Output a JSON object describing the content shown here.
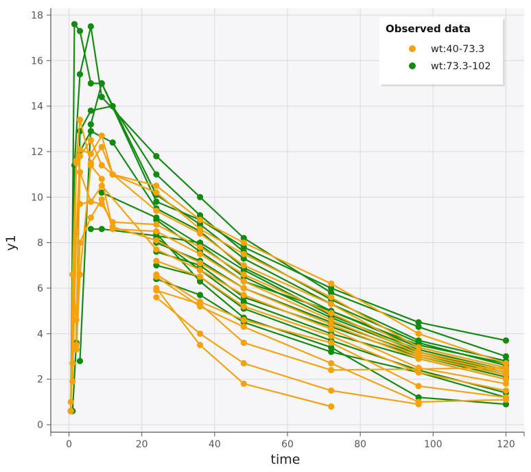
{
  "chart_data": {
    "type": "line",
    "title": "",
    "xlabel": "time",
    "ylabel": "y1",
    "xlim": [
      -5,
      125
    ],
    "ylim": [
      -0.3,
      18.3
    ],
    "xticks": [
      "0",
      "20",
      "40",
      "60",
      "80",
      "100",
      "120"
    ],
    "yticks": [
      "0",
      "2",
      "4",
      "6",
      "8",
      "10",
      "12",
      "14",
      "16",
      "18"
    ],
    "grid": true,
    "legend": {
      "title": "Observed data",
      "position": "top-right",
      "entries": [
        {
          "label": "wt:40-73.3",
          "color": "#f5a20f"
        },
        {
          "label": "wt:73.3-102",
          "color": "#138a10"
        }
      ]
    },
    "series": [
      {
        "group": "wt:73.3-102",
        "color": "#138a10",
        "x": [
          0.5,
          1.5,
          3,
          6,
          9,
          24,
          36,
          48,
          72,
          96,
          120
        ],
        "y": [
          0.6,
          17.6,
          17.3,
          15.0,
          15.0,
          9.8,
          9.0,
          7.8,
          6.0,
          4.5,
          3.7
        ]
      },
      {
        "group": "wt:73.3-102",
        "color": "#138a10",
        "x": [
          0.5,
          1.5,
          3,
          6,
          9,
          24,
          36,
          48,
          72,
          96,
          120
        ],
        "y": [
          0.6,
          11.4,
          15.4,
          17.5,
          14.4,
          11.8,
          10.0,
          8.2,
          5.8,
          4.3,
          3.0
        ]
      },
      {
        "group": "wt:73.3-102",
        "color": "#138a10",
        "x": [
          1,
          2,
          3,
          6,
          12,
          24,
          36,
          48,
          72,
          96,
          120
        ],
        "y": [
          0.6,
          3.6,
          12.9,
          13.8,
          14.0,
          11.0,
          9.2,
          7.6,
          5.5,
          3.7,
          2.8
        ]
      },
      {
        "group": "wt:73.3-102",
        "color": "#138a10",
        "x": [
          3,
          6,
          9,
          24,
          36,
          48,
          72,
          96,
          120
        ],
        "y": [
          2.8,
          13.2,
          15.0,
          10.1,
          8.8,
          7.3,
          5.3,
          3.6,
          2.6
        ]
      },
      {
        "group": "wt:73.3-102",
        "color": "#138a10",
        "x": [
          3,
          6,
          12,
          24,
          36,
          48,
          72,
          96,
          120
        ],
        "y": [
          12.0,
          12.9,
          12.4,
          9.5,
          8.5,
          6.9,
          5.0,
          3.4,
          2.5
        ]
      },
      {
        "group": "wt:73.3-102",
        "color": "#138a10",
        "x": [
          6,
          9,
          24,
          36,
          48,
          72,
          96,
          120
        ],
        "y": [
          8.6,
          8.6,
          8.3,
          8.0,
          6.8,
          4.8,
          3.3,
          2.4
        ]
      },
      {
        "group": "wt:73.3-102",
        "color": "#138a10",
        "x": [
          9,
          24,
          36,
          48,
          72,
          96,
          120
        ],
        "y": [
          10.2,
          9.1,
          7.9,
          6.5,
          4.7,
          3.2,
          2.3
        ]
      },
      {
        "group": "wt:73.3-102",
        "color": "#138a10",
        "x": [
          24,
          36,
          48,
          72,
          96,
          120
        ],
        "y": [
          8.0,
          7.2,
          6.0,
          4.5,
          3.1,
          2.2
        ]
      },
      {
        "group": "wt:73.3-102",
        "color": "#138a10",
        "x": [
          24,
          36,
          48,
          72,
          96,
          120
        ],
        "y": [
          7.6,
          7.0,
          5.6,
          4.3,
          3.0,
          2.1
        ]
      },
      {
        "group": "wt:73.3-102",
        "color": "#138a10",
        "x": [
          24,
          36,
          48,
          72,
          96,
          120
        ],
        "y": [
          8.2,
          6.8,
          5.4,
          4.0,
          2.9,
          2.0
        ]
      },
      {
        "group": "wt:73.3-102",
        "color": "#138a10",
        "x": [
          24,
          36,
          48,
          72,
          96,
          120
        ],
        "y": [
          7.0,
          6.5,
          5.1,
          3.7,
          2.4,
          1.4
        ]
      },
      {
        "group": "wt:73.3-102",
        "color": "#138a10",
        "x": [
          24,
          36,
          48,
          72,
          96,
          120
        ],
        "y": [
          6.4,
          5.7,
          4.5,
          3.2,
          2.3,
          1.2
        ]
      },
      {
        "group": "wt:73.3-102",
        "color": "#138a10",
        "x": [
          24,
          36,
          48,
          72,
          96,
          120
        ],
        "y": [
          8.4,
          6.3,
          4.7,
          3.4,
          1.2,
          0.9
        ]
      },
      {
        "group": "wt:73.3-102",
        "color": "#138a10",
        "x": [
          24,
          36,
          48,
          72,
          96,
          120
        ],
        "y": [
          9.0,
          7.6,
          6.3,
          5.0,
          3.5,
          2.7
        ]
      },
      {
        "group": "wt:40-73.3",
        "color": "#f5a20f",
        "x": [
          0.5,
          1,
          2,
          3,
          6,
          9,
          12,
          24,
          36,
          48,
          72,
          96,
          120
        ],
        "y": [
          0.6,
          6.6,
          11.5,
          12.1,
          11.9,
          12.7,
          11.0,
          10.5,
          9.0,
          8.0,
          6.2,
          4.0,
          2.7
        ]
      },
      {
        "group": "wt:40-73.3",
        "color": "#f5a20f",
        "x": [
          0.5,
          1,
          2,
          3,
          6,
          9,
          12,
          24,
          36,
          48,
          72,
          96,
          120
        ],
        "y": [
          1.0,
          2.7,
          11.6,
          13.4,
          11.5,
          12.2,
          11.0,
          10.2,
          8.6,
          7.5,
          5.6,
          3.4,
          2.5
        ]
      },
      {
        "group": "wt:40-73.3",
        "color": "#f5a20f",
        "x": [
          1,
          2,
          3,
          6,
          9,
          12,
          24,
          36,
          48,
          72,
          96,
          120
        ],
        "y": [
          1.9,
          8.4,
          11.8,
          12.5,
          11.4,
          11.0,
          9.4,
          8.4,
          7.0,
          5.3,
          3.2,
          2.4
        ]
      },
      {
        "group": "wt:40-73.3",
        "color": "#f5a20f",
        "x": [
          1,
          2,
          3,
          6,
          9,
          12,
          24,
          36,
          48,
          72,
          96,
          120
        ],
        "y": [
          6.6,
          4.6,
          11.1,
          9.8,
          9.7,
          8.9,
          8.8,
          7.8,
          6.6,
          4.9,
          3.1,
          2.3
        ]
      },
      {
        "group": "wt:40-73.3",
        "color": "#f5a20f",
        "x": [
          2,
          3,
          6,
          9,
          12,
          24,
          36,
          48,
          72,
          96,
          120
        ],
        "y": [
          3.3,
          6.6,
          11.4,
          10.8,
          8.6,
          8.5,
          7.5,
          6.3,
          4.6,
          3.0,
          2.2
        ]
      },
      {
        "group": "wt:40-73.3",
        "color": "#f5a20f",
        "x": [
          2,
          3,
          6,
          9,
          12,
          24,
          36,
          48,
          72,
          96,
          120
        ],
        "y": [
          3.5,
          8.0,
          9.1,
          9.9,
          8.7,
          8.1,
          7.1,
          6.0,
          4.4,
          2.9,
          2.0
        ]
      },
      {
        "group": "wt:40-73.3",
        "color": "#f5a20f",
        "x": [
          3,
          6,
          9,
          24,
          36,
          48,
          72,
          96,
          120
        ],
        "y": [
          9.7,
          9.8,
          10.5,
          7.7,
          6.8,
          5.7,
          4.2,
          2.5,
          1.8
        ]
      },
      {
        "group": "wt:40-73.3",
        "color": "#f5a20f",
        "x": [
          24,
          36,
          48,
          72,
          96,
          120
        ],
        "y": [
          7.2,
          6.5,
          5.2,
          3.9,
          2.3,
          1.5
        ]
      },
      {
        "group": "wt:40-73.3",
        "color": "#f5a20f",
        "x": [
          24,
          36,
          48,
          72,
          96,
          120
        ],
        "y": [
          6.6,
          5.4,
          4.6,
          3.6,
          1.7,
          1.2
        ]
      },
      {
        "group": "wt:40-73.3",
        "color": "#f5a20f",
        "x": [
          24,
          36,
          48,
          72,
          96,
          120
        ],
        "y": [
          6.5,
          5.2,
          4.3,
          2.7,
          1.0,
          1.1
        ]
      },
      {
        "group": "wt:40-73.3",
        "color": "#f5a20f",
        "x": [
          24,
          36,
          48,
          72,
          96
        ],
        "y": [
          5.6,
          4.0,
          2.7,
          1.5,
          0.9
        ]
      },
      {
        "group": "wt:40-73.3",
        "color": "#f5a20f",
        "x": [
          24,
          36,
          48,
          72
        ],
        "y": [
          6.0,
          3.5,
          1.8,
          0.8
        ]
      },
      {
        "group": "wt:40-73.3",
        "color": "#f5a20f",
        "x": [
          24,
          36,
          48,
          72,
          120
        ],
        "y": [
          5.9,
          5.3,
          3.6,
          2.4,
          2.5
        ]
      }
    ]
  }
}
